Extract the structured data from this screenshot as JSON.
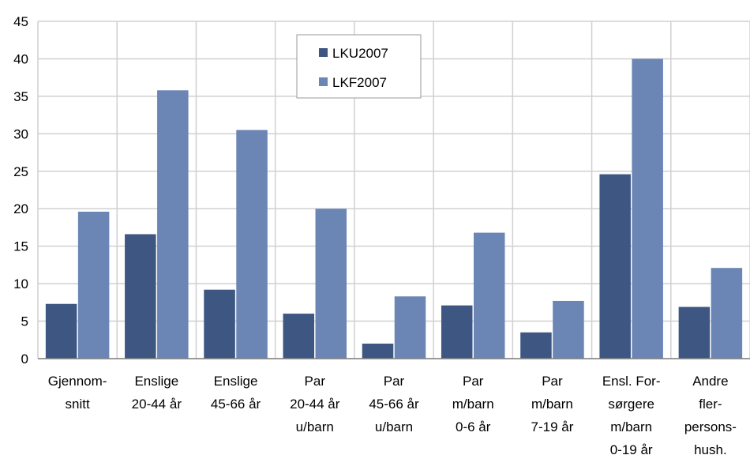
{
  "chart_data": {
    "type": "bar",
    "categories": [
      [
        "Gjennom-",
        "snitt"
      ],
      [
        "Enslige",
        "20-44 år"
      ],
      [
        "Enslige",
        "45-66 år"
      ],
      [
        "Par",
        "20-44 år",
        "u/barn"
      ],
      [
        "Par",
        "45-66 år",
        "u/barn"
      ],
      [
        "Par",
        "m/barn",
        "0-6 år"
      ],
      [
        "Par",
        "m/barn",
        "7-19 år"
      ],
      [
        "Ensl. For-",
        "sørgere",
        "m/barn",
        "0-19 år"
      ],
      [
        "Andre",
        "fler-",
        "persons-",
        "hush."
      ]
    ],
    "series": [
      {
        "name": "LKU2007",
        "color": "#3d5682",
        "values": [
          7.3,
          16.6,
          9.2,
          6.0,
          2.0,
          7.1,
          3.5,
          24.6,
          6.9
        ]
      },
      {
        "name": "LKF2007",
        "color": "#6b85b5",
        "values": [
          19.6,
          35.8,
          30.5,
          20.0,
          8.3,
          16.8,
          7.7,
          40.0,
          12.1
        ]
      }
    ],
    "yticks": [
      0,
      5,
      10,
      15,
      20,
      25,
      30,
      35,
      40,
      45
    ],
    "ylim": [
      0,
      45
    ],
    "title": "",
    "xlabel": "",
    "ylabel": "",
    "grid": true,
    "legend_position": "top-center"
  }
}
